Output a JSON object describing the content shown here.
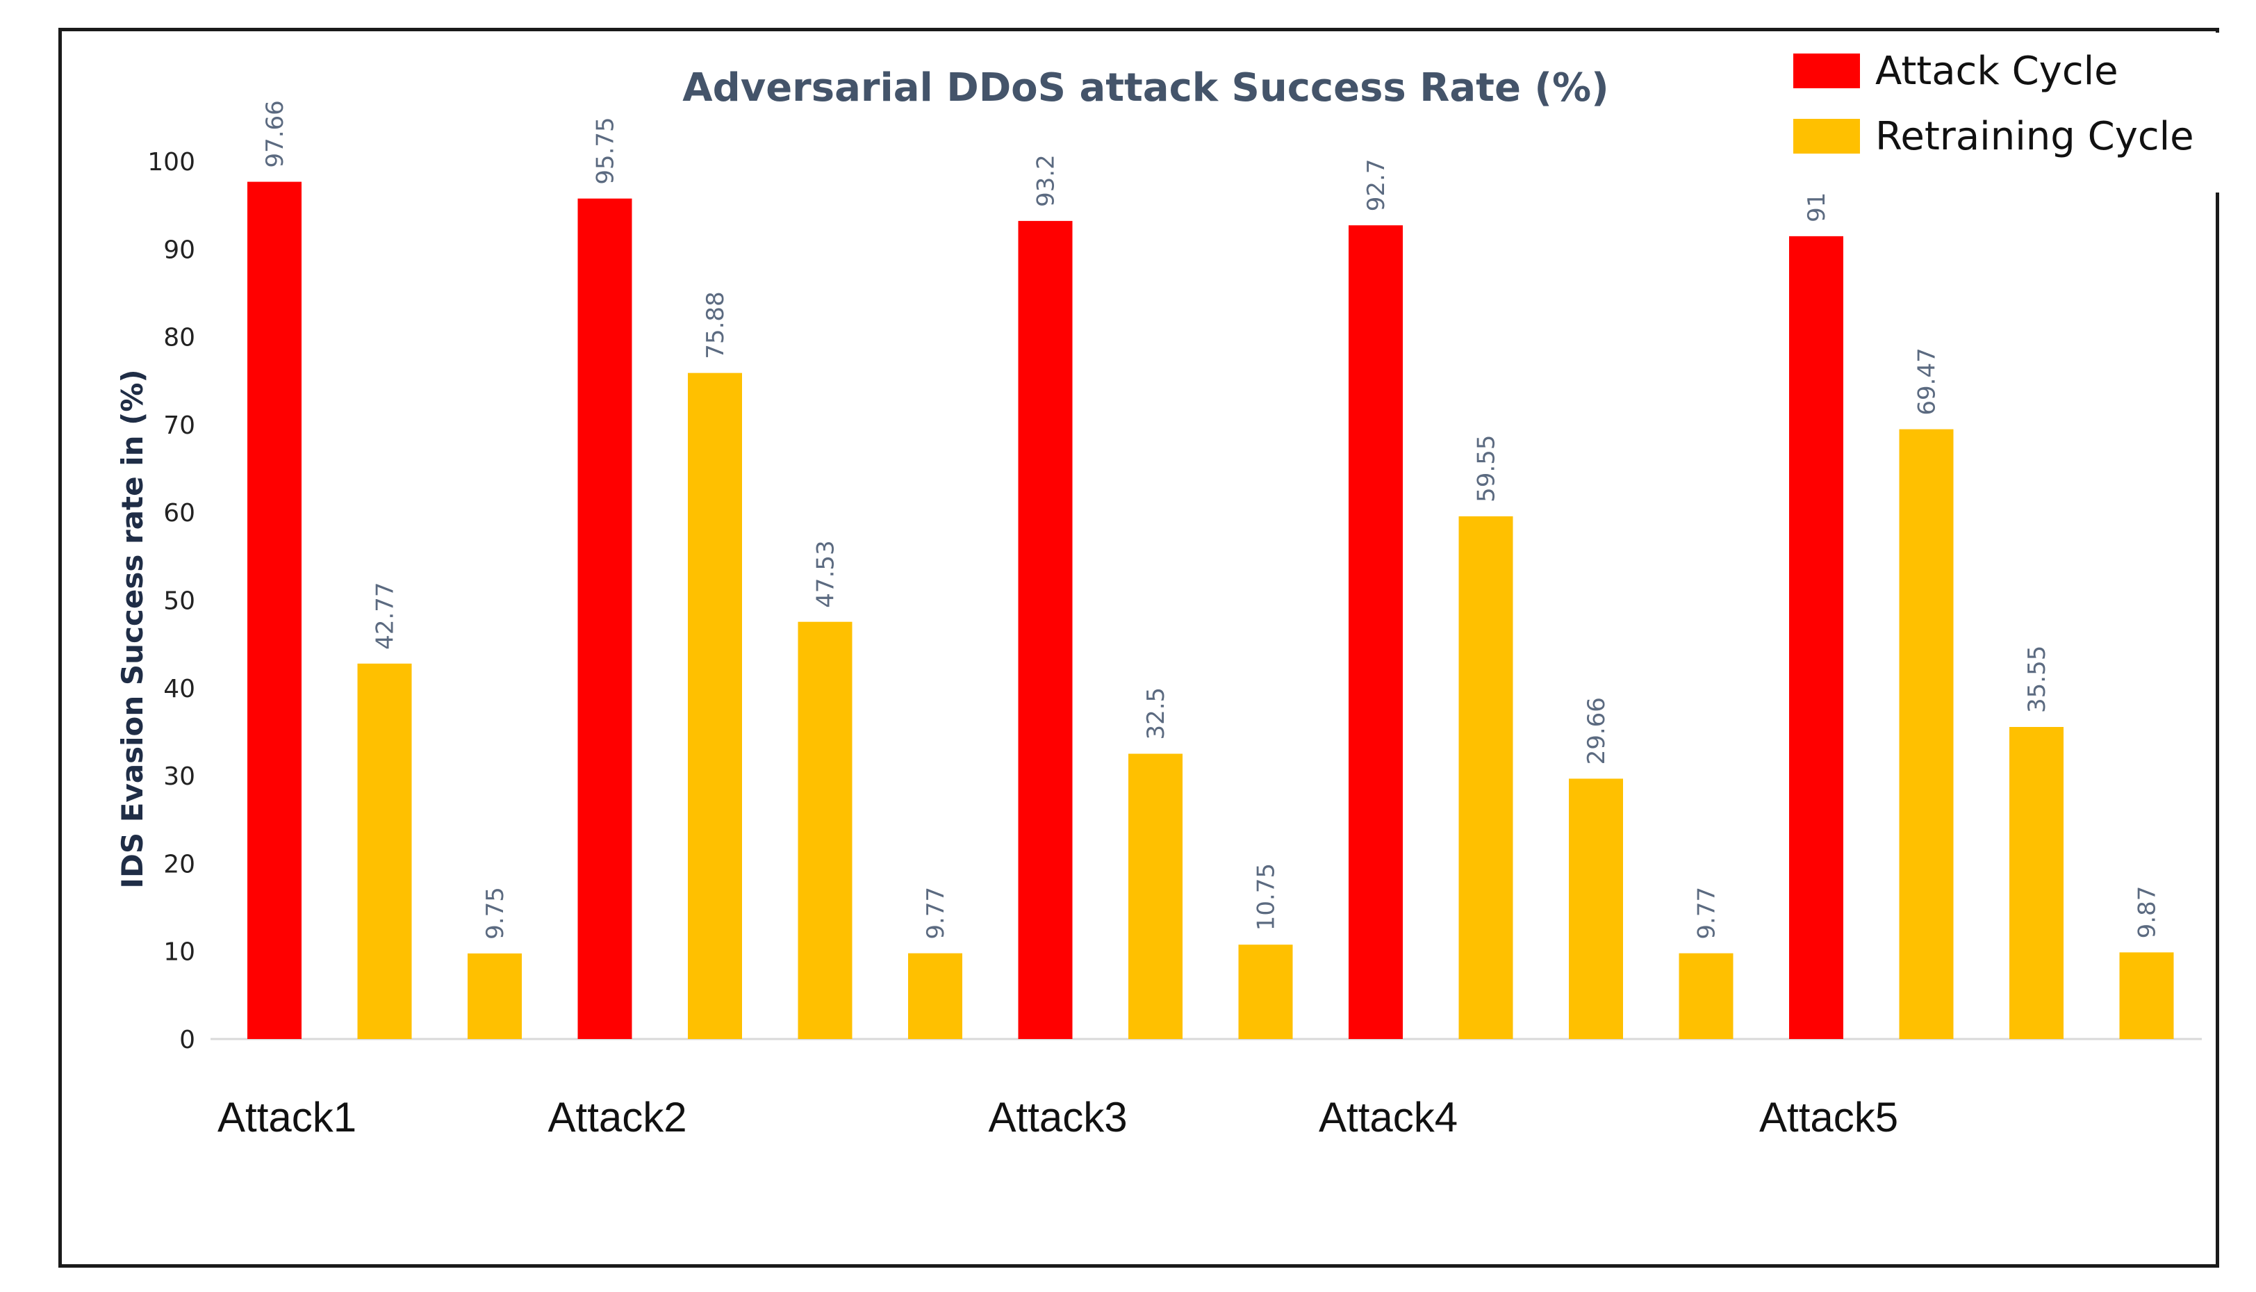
{
  "chart_data": {
    "type": "bar",
    "title": "Adversarial DDoS attack Success Rate (%)",
    "ylabel": "IDS Evasion Success rate in (%)",
    "xlabel": "",
    "ylim": [
      0,
      100
    ],
    "yticks": [
      "0",
      "10",
      "20",
      "30",
      "40",
      "50",
      "60",
      "70",
      "80",
      "90",
      "100"
    ],
    "grid": false,
    "legend_position": "top-right",
    "legend": [
      {
        "name": "Attack Cycle",
        "color": "#ff0000"
      },
      {
        "name": "Retraining Cycle",
        "color": "#ffc000"
      }
    ],
    "groups": [
      "Attack1",
      "Attack2",
      "Attack3",
      "Attack4",
      "Attack5"
    ],
    "bars": [
      {
        "group": "Attack1",
        "series": "Attack Cycle",
        "value": 97.66,
        "label": "97.66"
      },
      {
        "group": "Attack1",
        "series": "Retraining Cycle",
        "value": 42.77,
        "label": "42.77"
      },
      {
        "group": "Attack1",
        "series": "Retraining Cycle",
        "value": 9.75,
        "label": "9.75"
      },
      {
        "group": "Attack2",
        "series": "Attack Cycle",
        "value": 95.75,
        "label": "95.75"
      },
      {
        "group": "Attack2",
        "series": "Retraining Cycle",
        "value": 75.88,
        "label": "75.88"
      },
      {
        "group": "Attack2",
        "series": "Retraining Cycle",
        "value": 47.53,
        "label": "47.53"
      },
      {
        "group": "Attack2",
        "series": "Retraining Cycle",
        "value": 9.77,
        "label": "9.77"
      },
      {
        "group": "Attack3",
        "series": "Attack Cycle",
        "value": 93.2,
        "label": "93.2"
      },
      {
        "group": "Attack3",
        "series": "Retraining Cycle",
        "value": 32.5,
        "label": "32.5"
      },
      {
        "group": "Attack3",
        "series": "Retraining Cycle",
        "value": 10.75,
        "label": "10.75"
      },
      {
        "group": "Attack4",
        "series": "Attack Cycle",
        "value": 92.7,
        "label": "92.7"
      },
      {
        "group": "Attack4",
        "series": "Retraining Cycle",
        "value": 59.55,
        "label": "59.55"
      },
      {
        "group": "Attack4",
        "series": "Retraining Cycle",
        "value": 29.66,
        "label": "29.66"
      },
      {
        "group": "Attack4",
        "series": "Retraining Cycle",
        "value": 9.77,
        "label": "9.77"
      },
      {
        "group": "Attack5",
        "series": "Attack Cycle",
        "value": 91.46,
        "label": "91.46"
      },
      {
        "group": "Attack5",
        "series": "Retraining Cycle",
        "value": 69.47,
        "label": "69.47"
      },
      {
        "group": "Attack5",
        "series": "Retraining Cycle",
        "value": 35.55,
        "label": "35.55"
      },
      {
        "group": "Attack5",
        "series": "Retraining Cycle",
        "value": 9.87,
        "label": "9.87"
      }
    ]
  }
}
